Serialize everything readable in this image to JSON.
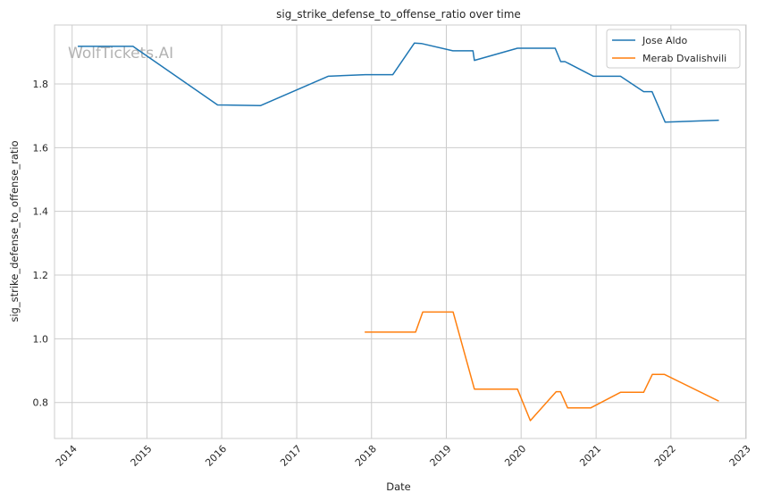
{
  "watermark": "WolfTickets.AI",
  "chart_data": {
    "type": "line",
    "title": "sig_strike_defense_to_offense_ratio over time",
    "xlabel": "Date",
    "ylabel": "sig_strike_defense_to_offense_ratio",
    "x_ticks": [
      "2014",
      "2015",
      "2016",
      "2017",
      "2018",
      "2019",
      "2020",
      "2021",
      "2022",
      "2023"
    ],
    "y_ticks": [
      0.8,
      1.0,
      1.2,
      1.4,
      1.6,
      1.8
    ],
    "xlim": [
      "2013-10-07",
      "2023-01-03"
    ],
    "ylim": [
      0.687,
      1.985
    ],
    "grid": true,
    "legend_position": "top-right",
    "series": [
      {
        "name": "Jose Aldo",
        "color": "#1f77b4",
        "points": [
          [
            "2014-02-01",
            1.918
          ],
          [
            "2014-10-25",
            1.918
          ],
          [
            "2015-12-12",
            1.734
          ],
          [
            "2016-07-09",
            1.732
          ],
          [
            "2017-06-03",
            1.824
          ],
          [
            "2017-12-02",
            1.829
          ],
          [
            "2018-04-15",
            1.829
          ],
          [
            "2018-07-29",
            1.928
          ],
          [
            "2018-09-01",
            1.927
          ],
          [
            "2019-02-02",
            1.904
          ],
          [
            "2019-05-11",
            1.904
          ],
          [
            "2019-05-18",
            1.874
          ],
          [
            "2019-12-14",
            1.912
          ],
          [
            "2020-06-15",
            1.912
          ],
          [
            "2020-07-12",
            1.87
          ],
          [
            "2020-08-02",
            1.87
          ],
          [
            "2020-12-19",
            1.824
          ],
          [
            "2021-04-30",
            1.824
          ],
          [
            "2021-08-21",
            1.776
          ],
          [
            "2021-10-01",
            1.776
          ],
          [
            "2021-12-04",
            1.68
          ],
          [
            "2022-08-20",
            1.686
          ]
        ]
      },
      {
        "name": "Merab Dvalishvili",
        "color": "#ff7f0e",
        "points": [
          [
            "2017-12-02",
            1.021
          ],
          [
            "2018-08-04",
            1.021
          ],
          [
            "2018-09-08",
            1.084
          ],
          [
            "2019-02-03",
            1.084
          ],
          [
            "2019-05-18",
            0.842
          ],
          [
            "2019-12-14",
            0.842
          ],
          [
            "2020-02-15",
            0.743
          ],
          [
            "2020-06-20",
            0.834
          ],
          [
            "2020-07-11",
            0.834
          ],
          [
            "2020-08-15",
            0.783
          ],
          [
            "2020-12-05",
            0.783
          ],
          [
            "2021-04-30",
            0.832
          ],
          [
            "2021-08-21",
            0.832
          ],
          [
            "2021-10-02",
            0.888
          ],
          [
            "2021-12-01",
            0.888
          ],
          [
            "2022-08-20",
            0.805
          ]
        ]
      }
    ]
  }
}
